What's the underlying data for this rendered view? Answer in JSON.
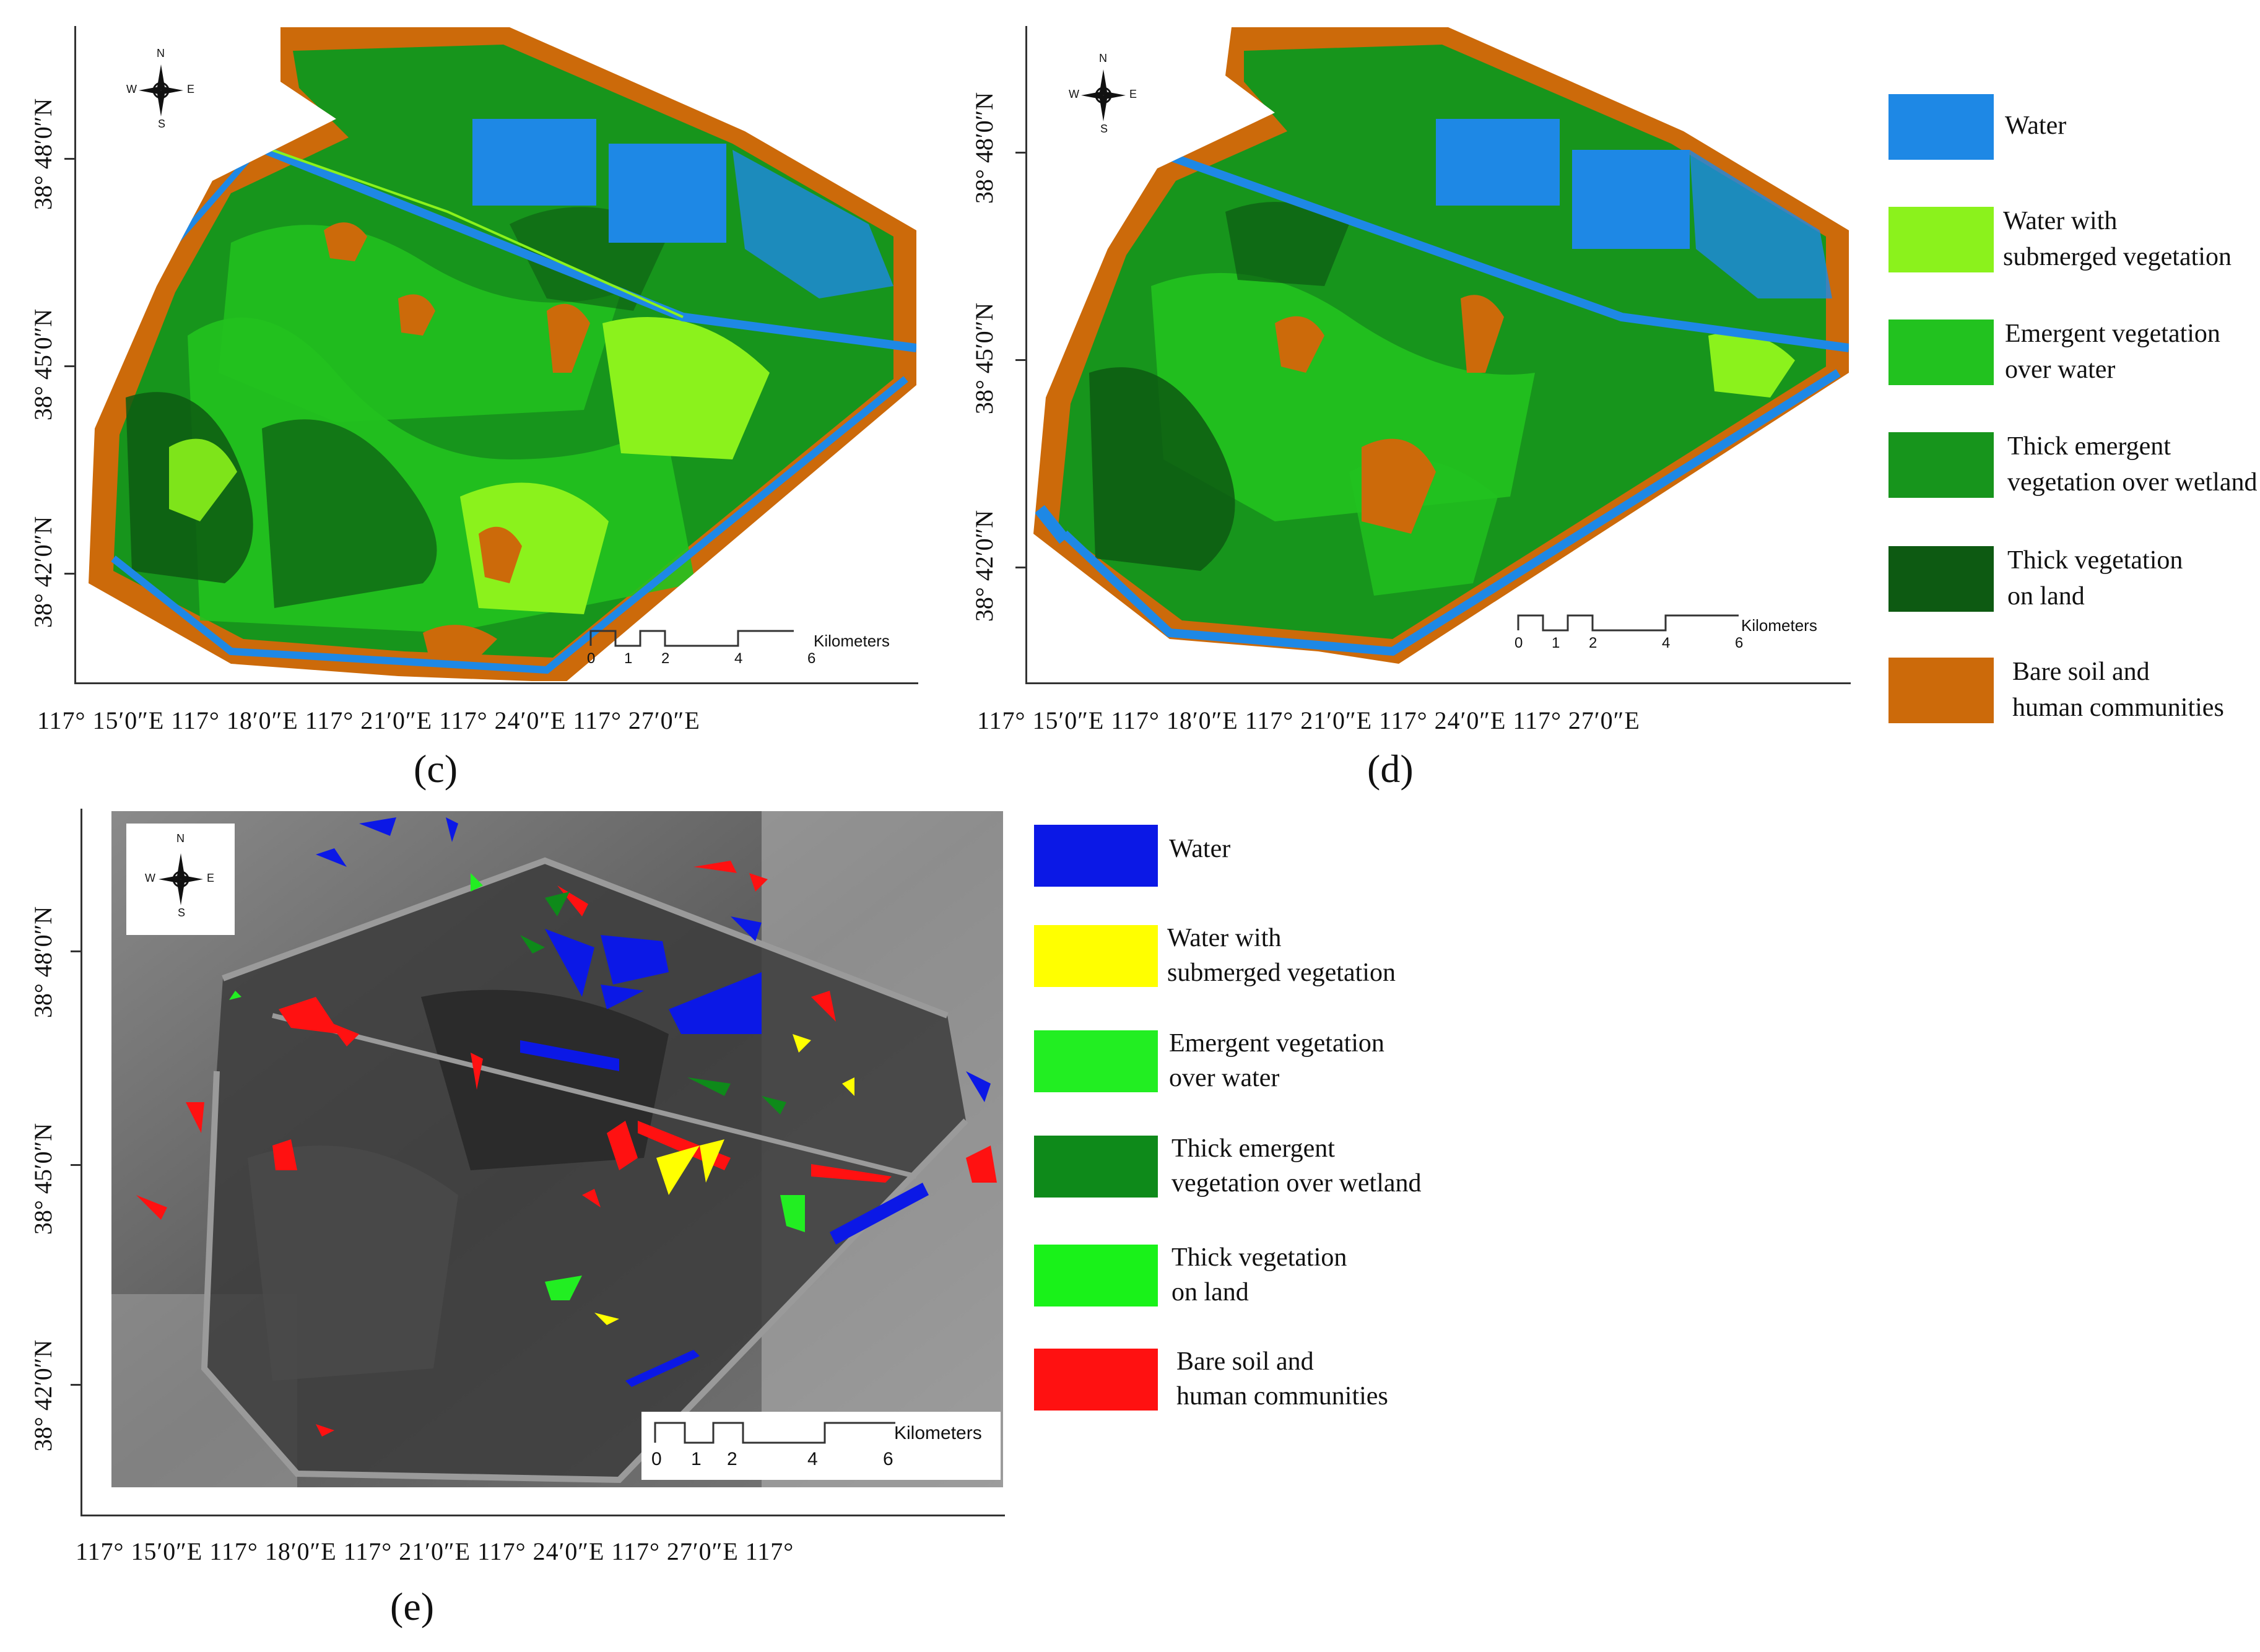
{
  "panels": {
    "c": {
      "label": "(c)",
      "y_ticks": [
        "38° 48′0″N",
        "38° 45′0″N",
        "38° 42′0″N"
      ],
      "x_ticks_line": "117° 15′0″E 117° 18′0″E 117° 21′0″E 117° 24′0″E 117° 27′0″E"
    },
    "d": {
      "label": "(d)",
      "y_ticks": [
        "38° 48′0″N",
        "38° 45′0″N",
        "38° 42′0″N"
      ],
      "x_ticks_line": "117° 15′0″E 117° 18′0″E 117° 21′0″E 117° 24′0″E 117° 27′0″E"
    },
    "e": {
      "label": "(e)",
      "y_ticks": [
        "38° 48′0″N",
        "38° 45′0″N",
        "38° 42′0″N"
      ],
      "x_ticks_line": "117° 15′0″E 117° 18′0″E 117° 21′0″E 117° 24′0″E 117° 27′0″E 117°"
    }
  },
  "compass": {
    "n": "N",
    "s": "S",
    "e": "E",
    "w": "W"
  },
  "scale": {
    "unit": "Kilometers",
    "labels": [
      "0",
      "1",
      "2",
      "4",
      "6"
    ]
  },
  "legend_top": [
    {
      "line1": "Water",
      "line2": "",
      "color": "#1e88e5"
    },
    {
      "line1": "Water with",
      "line2": "submerged vegetation",
      "color": "#8bf21c"
    },
    {
      "line1": "Emergent vegetation",
      "line2": "over water",
      "color": "#22c21f"
    },
    {
      "line1": "Thick emergent",
      "line2": "vegetation over wetland",
      "color": "#17951c"
    },
    {
      "line1": "Thick vegetation",
      "line2": "on land",
      "color": "#0d5a12"
    },
    {
      "line1": "Bare soil and",
      "line2": "human communities",
      "color": "#cc6a0a"
    }
  ],
  "legend_bottom": [
    {
      "line1": "Water",
      "line2": "",
      "color": "#0b18e6"
    },
    {
      "line1": "Water with",
      "line2": "submerged vegetation",
      "color": "#ffff00"
    },
    {
      "line1": "Emergent vegetation",
      "line2": "over water",
      "color": "#22ee22"
    },
    {
      "line1": "Thick emergent",
      "line2": "vegetation over wetland",
      "color": "#0e8a1a"
    },
    {
      "line1": "Thick vegetation",
      "line2": "on land",
      "color": "#19f219"
    },
    {
      "line1": "Bare soil and",
      "line2": "human communities",
      "color": "#ff1111"
    }
  ]
}
